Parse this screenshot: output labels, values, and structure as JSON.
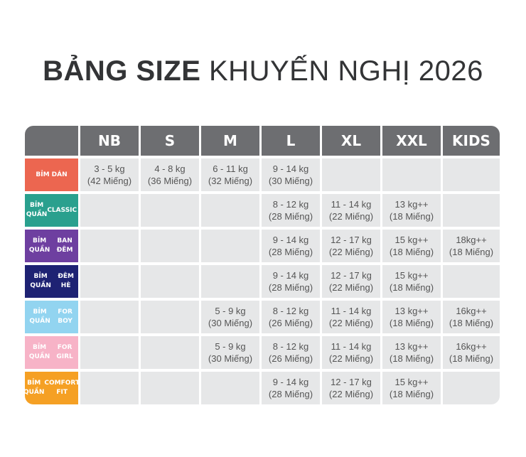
{
  "title": {
    "bold": "BẢNG SIZE",
    "regular": "KHUYẾN NGHỊ 2026"
  },
  "sizes": [
    "NB",
    "S",
    "M",
    "L",
    "XL",
    "XXL",
    "KIDS"
  ],
  "rows": [
    {
      "label": [
        "BỈM DÁN"
      ],
      "color": "#ec6650",
      "cells": [
        [
          "3 - 5 kg",
          "(42 Miếng)"
        ],
        [
          "4 - 8 kg",
          "(36 Miếng)"
        ],
        [
          "6 - 11 kg",
          "(32 Miếng)"
        ],
        [
          "9 - 14 kg",
          "(30 Miếng)"
        ],
        [],
        [],
        []
      ]
    },
    {
      "label": [
        "BỈM QUẦN",
        "CLASSIC"
      ],
      "color": "#2aa08e",
      "cells": [
        [],
        [],
        [],
        [
          "8 - 12 kg",
          "(28 Miếng)"
        ],
        [
          "11 - 14 kg",
          "(22 Miếng)"
        ],
        [
          "13 kg++",
          "(18 Miếng)"
        ],
        []
      ]
    },
    {
      "label": [
        "BỈM QUẦN",
        "BAN ĐÊM"
      ],
      "color": "#6e3fa0",
      "cells": [
        [],
        [],
        [],
        [
          "9 - 14 kg",
          "(28 Miếng)"
        ],
        [
          "12 - 17 kg",
          "(22 Miếng)"
        ],
        [
          "15 kg++",
          "(18 Miếng)"
        ],
        [
          "18kg++",
          "(18 Miếng)"
        ]
      ]
    },
    {
      "label": [
        "BỈM QUẦN",
        "ĐÊM HÈ"
      ],
      "color": "#1e2273",
      "cells": [
        [],
        [],
        [],
        [
          "9 - 14 kg",
          "(28 Miếng)"
        ],
        [
          "12 - 17 kg",
          "(22 Miếng)"
        ],
        [
          "15 kg++",
          "(18 Miếng)"
        ],
        []
      ]
    },
    {
      "label": [
        "BỈM QUẦN",
        "FOR BOY"
      ],
      "color": "#92d4f0",
      "cells": [
        [],
        [],
        [
          "5 - 9 kg",
          "(30 Miếng)"
        ],
        [
          "8 - 12 kg",
          "(26 Miếng)"
        ],
        [
          "11 - 14 kg",
          "(22 Miếng)"
        ],
        [
          "13 kg++",
          "(18 Miếng)"
        ],
        [
          "16kg++",
          "(18 Miếng)"
        ]
      ]
    },
    {
      "label": [
        "BỈM QUẦN",
        "FOR GIRL"
      ],
      "color": "#f7b3c7",
      "cells": [
        [],
        [],
        [
          "5 - 9 kg",
          "(30 Miếng)"
        ],
        [
          "8 - 12 kg",
          "(26 Miếng)"
        ],
        [
          "11 - 14 kg",
          "(22 Miếng)"
        ],
        [
          "13 kg++",
          "(18 Miếng)"
        ],
        [
          "16kg++",
          "(18 Miếng)"
        ]
      ]
    },
    {
      "label": [
        "BỈM QUẦN",
        "COMFORT FIT"
      ],
      "color": "#f5a024",
      "cells": [
        [],
        [],
        [],
        [
          "9 - 14 kg",
          "(28 Miếng)"
        ],
        [
          "12 - 17 kg",
          "(22 Miếng)"
        ],
        [
          "15 kg++",
          "(18 Miếng)"
        ],
        []
      ]
    }
  ],
  "colors": {
    "header": "#6d6e71",
    "cell": "#e6e7e8",
    "title": "#333436"
  }
}
